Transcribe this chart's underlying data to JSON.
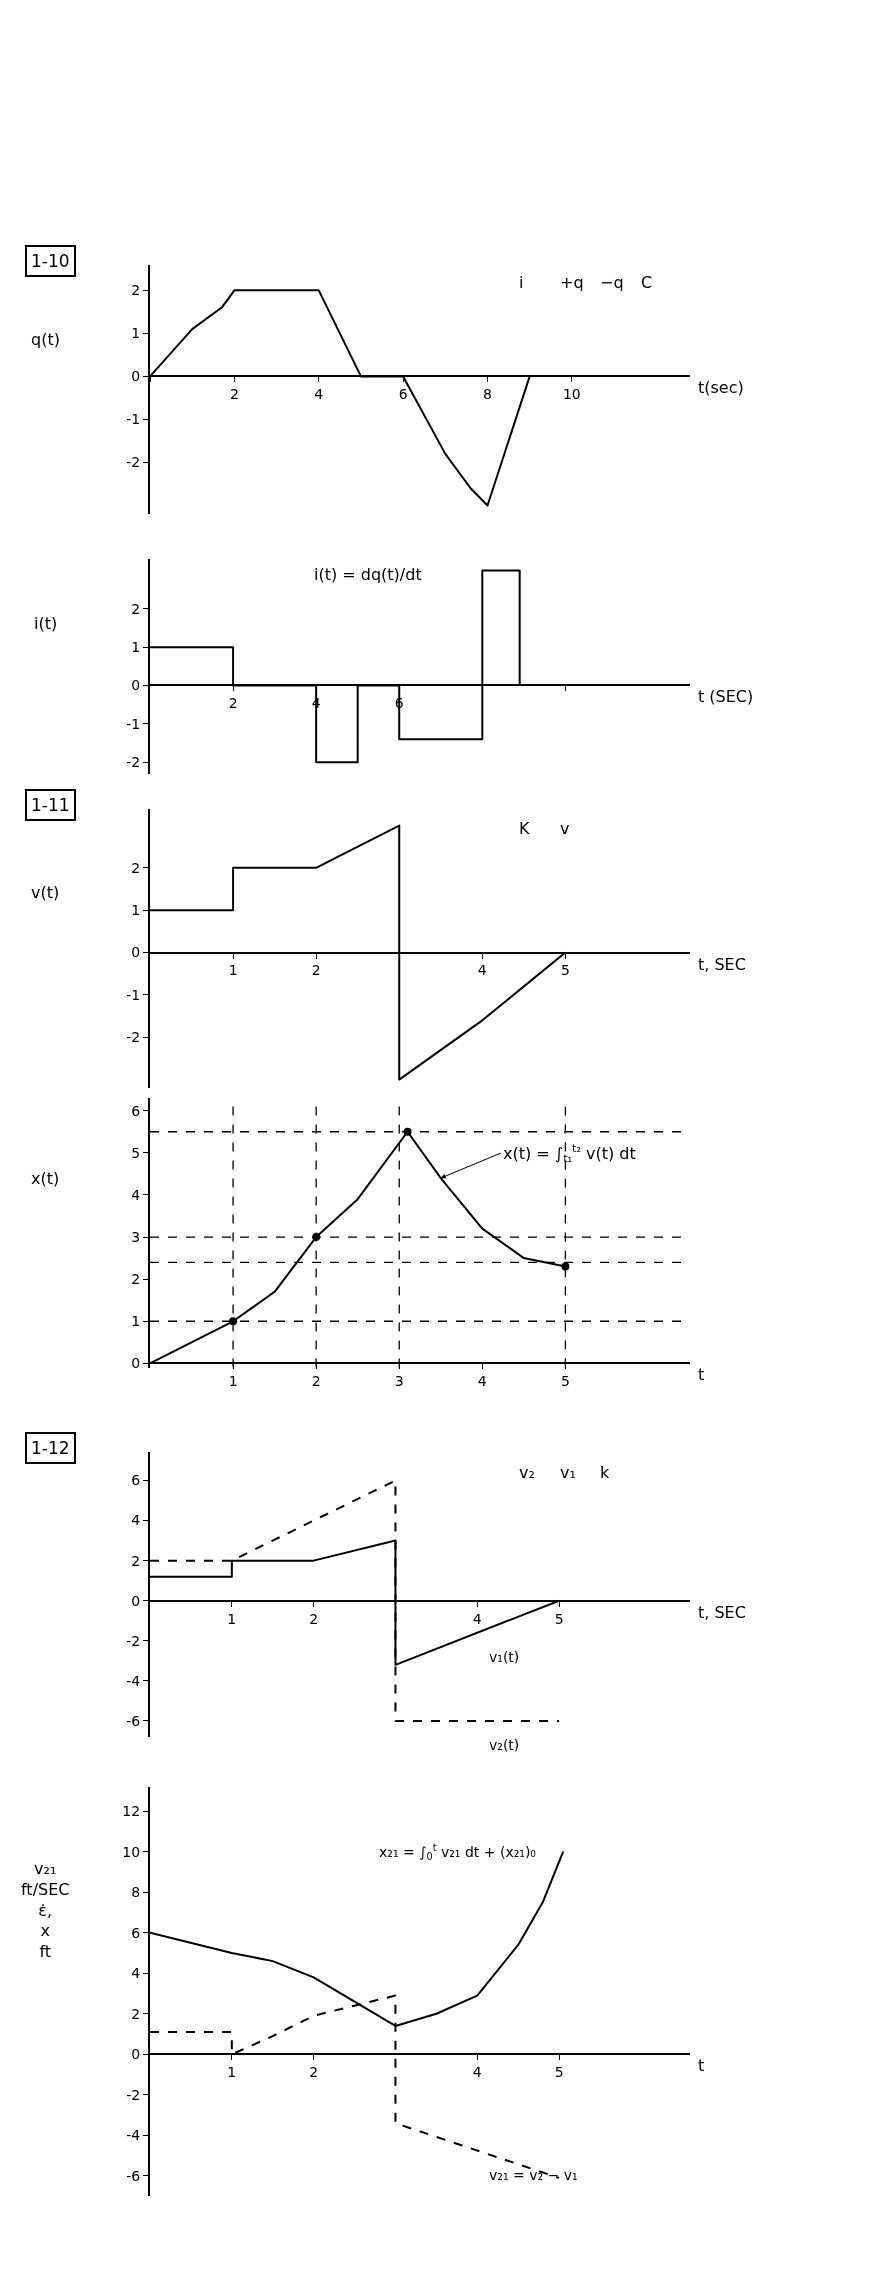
{
  "chart_data": [
    {
      "type": "line",
      "title": "1-10",
      "ylabel": "q(t)",
      "xlabel": "t(sec)",
      "x": [
        0,
        1,
        1.7,
        2,
        4,
        5,
        6,
        7,
        7.6,
        8,
        9
      ],
      "series": [
        {
          "color": "#000000",
          "values": [
            0,
            1.1,
            1.6,
            2,
            2,
            0,
            0,
            -1.8,
            -2.6,
            -3,
            0
          ]
        }
      ],
      "xlim": [
        0,
        12.8
      ],
      "ylim": [
        -3.2,
        2.6
      ],
      "xticks": [
        {
          "value": 0,
          "label": null
        },
        2,
        4,
        6,
        8,
        10
      ],
      "yticks": [
        -2,
        -1,
        0,
        1,
        2
      ],
      "annotations": [
        "i",
        "+q",
        "−q",
        "C"
      ]
    },
    {
      "type": "step",
      "ylabel": "i(t)",
      "xlabel": "t (SEC)",
      "x": [
        0,
        2,
        4,
        5,
        6,
        8,
        8.9
      ],
      "series": [
        {
          "color": "#000000",
          "values": [
            1,
            0,
            -2,
            0,
            -1.4,
            3,
            0
          ]
        }
      ],
      "xlim": [
        0,
        13
      ],
      "ylim": [
        -2.3,
        3.3
      ],
      "xticks": [
        2,
        4,
        6,
        {
          "value": 8,
          "label": null
        },
        {
          "value": 10,
          "label": null
        }
      ],
      "yticks": [
        -2,
        -1,
        0,
        1,
        2
      ],
      "annotations": [
        "i(t) = dq(t)/dt"
      ]
    },
    {
      "type": "line",
      "title": "1-11",
      "ylabel": "v(t)",
      "xlabel": "t, SEC",
      "x": [
        0,
        1,
        1,
        2,
        2.3,
        3,
        3,
        4,
        5
      ],
      "series": [
        {
          "color": "#000000",
          "values": [
            1,
            1,
            2,
            2,
            2.3,
            3,
            -3,
            -1.6,
            0
          ]
        }
      ],
      "xlim": [
        0,
        6.5
      ],
      "ylim": [
        -3.2,
        3.4
      ],
      "xticks": [
        1,
        2,
        4,
        5
      ],
      "yticks": [
        -2,
        -1,
        0,
        1,
        2
      ],
      "annotations": [
        "K",
        "v"
      ]
    },
    {
      "type": "line",
      "ylabel": "x(t)",
      "xlabel": "t",
      "series": [
        {
          "color": "#000000",
          "x": [
            0,
            1,
            1.5,
            2,
            2.5,
            3.1,
            3.5,
            4,
            4.5,
            5
          ],
          "values": [
            0,
            1,
            1.7,
            3,
            3.9,
            5.5,
            4.4,
            3.2,
            2.5,
            2.3
          ]
        },
        {
          "type": "scatter",
          "marker": "circle",
          "color": "#000000",
          "x": [
            1,
            2,
            3.1,
            5
          ],
          "values": [
            1,
            3,
            5.5,
            2.3
          ]
        }
      ],
      "xlim": [
        0,
        6.5
      ],
      "ylim": [
        -0.1,
        6.3
      ],
      "xticks": [
        1,
        2,
        3,
        4,
        5
      ],
      "yticks": [
        0,
        1,
        2,
        3,
        4,
        5,
        6
      ],
      "ref_lines": [
        {
          "axis": "y",
          "value": 5.5,
          "line_style": "dashed"
        },
        {
          "axis": "y",
          "value": 3,
          "line_style": "dashed"
        },
        {
          "axis": "y",
          "value": 2.4,
          "line_style": "dashed"
        },
        {
          "axis": "y",
          "value": 1,
          "line_style": "dashed"
        },
        {
          "axis": "x",
          "value": 1,
          "line_style": "dashed"
        },
        {
          "axis": "x",
          "value": 2,
          "line_style": "dashed"
        },
        {
          "axis": "x",
          "value": 3,
          "line_style": "dashed"
        },
        {
          "axis": "x",
          "value": 5,
          "line_style": "dashed"
        }
      ],
      "annotations": [
        {
          "text": "x(t) = ∫$_{t₁}$$^{t₂}$ v(t) dt",
          "x": 3.5,
          "y": 4.4
        }
      ]
    },
    {
      "type": "line",
      "title": "1-12",
      "xlabel": "t, SEC",
      "series": [
        {
          "name": "v₁(t)",
          "color": "#000000",
          "line_style": "solid",
          "x": [
            0,
            1,
            1,
            2,
            3,
            3,
            5
          ],
          "values": [
            1.2,
            1.2,
            2,
            2,
            3,
            -3.2,
            0
          ]
        },
        {
          "name": "v₂(t)",
          "color": "#000000",
          "line_style": "dashed",
          "x": [
            0,
            1,
            3,
            3,
            5
          ],
          "values": [
            2,
            2,
            6,
            -6,
            -6
          ]
        }
      ],
      "xlim": [
        0,
        6.6
      ],
      "ylim": [
        -6.8,
        7.4
      ],
      "xticks": [
        1,
        2,
        4,
        5
      ],
      "yticks": [
        -6,
        -4,
        -2,
        0,
        2,
        4,
        6
      ],
      "annotations": [
        "v₂",
        "v₁",
        "k"
      ]
    },
    {
      "type": "line",
      "ylabel": "v₂₁\nft/SEC\nε̇,\nx\nft",
      "xlabel": "t",
      "series": [
        {
          "name": "x₂₁ = ∫$_{0}$$^{t}$ v₂₁ dt + (x₂₁)₀",
          "color": "#000000",
          "line_style": "solid",
          "x": [
            0,
            1,
            1.5,
            2,
            2.5,
            3,
            3.5,
            4,
            4.5,
            4.8,
            5.05
          ],
          "values": [
            6,
            5,
            4.6,
            3.8,
            2.6,
            1.4,
            2,
            2.9,
            5.4,
            7.5,
            10
          ]
        },
        {
          "name": "v₂₁ = v₂ − v₁",
          "color": "#000000",
          "line_style": "dashed",
          "x": [
            0,
            1,
            1,
            1.5,
            2,
            3,
            3,
            5
          ],
          "values": [
            1.1,
            1.1,
            0,
            0.9,
            1.9,
            2.9,
            -3.4,
            -6.1
          ]
        }
      ],
      "xlim": [
        0,
        6.6
      ],
      "ylim": [
        -7,
        13.2
      ],
      "xticks": [
        1,
        2,
        4,
        5
      ],
      "yticks": [
        -6,
        -4,
        -2,
        0,
        2,
        4,
        6,
        8,
        10,
        12
      ]
    }
  ]
}
